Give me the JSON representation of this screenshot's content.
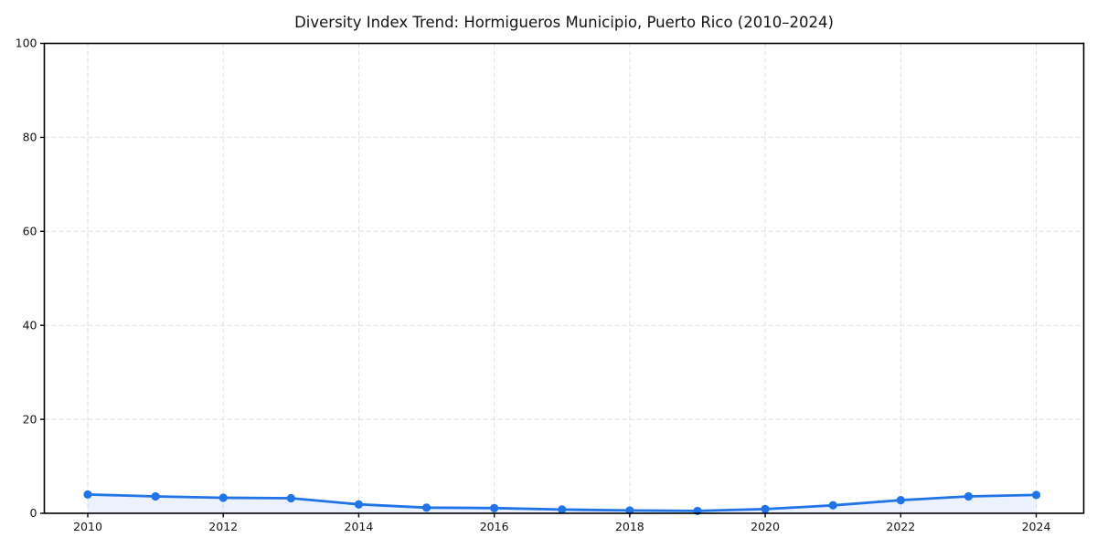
{
  "chart_data": {
    "type": "line",
    "title": "Diversity Index Trend: Hormigueros Municipio, Puerto Rico (2010–2024)",
    "x": [
      2010,
      2011,
      2012,
      2013,
      2014,
      2015,
      2016,
      2017,
      2018,
      2019,
      2020,
      2021,
      2022,
      2023,
      2024
    ],
    "values": [
      4.0,
      3.6,
      3.3,
      3.2,
      1.9,
      1.2,
      1.1,
      0.8,
      0.6,
      0.5,
      0.9,
      1.7,
      2.8,
      3.6,
      3.9
    ],
    "xlabel": "",
    "ylabel": "",
    "ylim": [
      0,
      100
    ],
    "xticks": [
      2010,
      2012,
      2014,
      2016,
      2018,
      2020,
      2022,
      2024
    ],
    "yticks": [
      0,
      20,
      40,
      60,
      80,
      100
    ],
    "grid": "dashed",
    "legend": "none",
    "line_color": "#2173E8",
    "marker_color": "#2173E8",
    "fill_color": "#2173E8",
    "fill_opacity": 0.09,
    "grid_color": "#DFDFDF",
    "axis_color": "#000000",
    "background_color": "#FFFFFF"
  }
}
